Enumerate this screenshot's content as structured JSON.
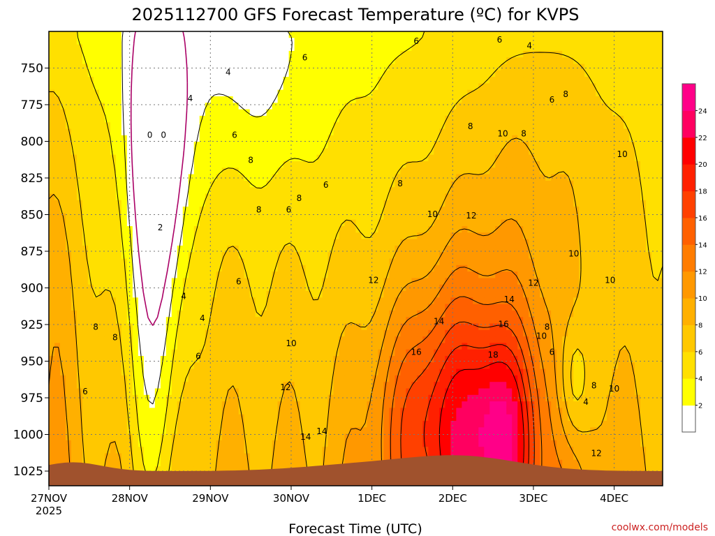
{
  "chart_data": {
    "type": "heatmap",
    "title": "2025112700 GFS Forecast Temperature (ºC) for KVPS",
    "xlabel": "Forecast Time (UTC)",
    "credit": "coolwx.com/models",
    "year_label": "2025",
    "x_ticks": [
      "27NOV",
      "28NOV",
      "29NOV",
      "30NOV",
      "1DEC",
      "2DEC",
      "3DEC",
      "4DEC"
    ],
    "y_ticks": [
      750,
      775,
      800,
      825,
      850,
      875,
      900,
      925,
      950,
      975,
      1000,
      1025
    ],
    "y_axis": "pressure (hPa), inverted",
    "ylim": [
      1035,
      725
    ],
    "colorbar": {
      "levels": [
        0,
        2,
        4,
        6,
        8,
        10,
        12,
        14,
        16,
        18,
        20,
        22,
        24,
        26
      ],
      "labels": [
        "2",
        "4",
        "6",
        "8",
        "10",
        "12",
        "14",
        "16",
        "18",
        "20",
        "22",
        "24"
      ],
      "colors": [
        "#ffffff",
        "#ffff00",
        "#ffe000",
        "#ffc800",
        "#ffb000",
        "#ff9800",
        "#ff7c00",
        "#ff6000",
        "#ff4000",
        "#ff2000",
        "#ff0000",
        "#ff0060",
        "#ff0088"
      ]
    },
    "ground_color": "#a0522d",
    "freezing_contour_color": "#aa0066",
    "contour_labels": [
      {
        "text": "0",
        "day": 1.25,
        "p": 796,
        "freezing": true
      },
      {
        "text": "0",
        "day": 1.42,
        "p": 796,
        "freezing": true
      },
      {
        "text": "2",
        "day": 1.38,
        "p": 859
      },
      {
        "text": "4",
        "day": 2.22,
        "p": 753
      },
      {
        "text": "4",
        "day": 1.75,
        "p": 771
      },
      {
        "text": "4",
        "day": 1.67,
        "p": 906
      },
      {
        "text": "4",
        "day": 1.9,
        "p": 921
      },
      {
        "text": "6",
        "day": 2.3,
        "p": 796
      },
      {
        "text": "6",
        "day": 2.35,
        "p": 896
      },
      {
        "text": "6",
        "day": 1.85,
        "p": 947
      },
      {
        "text": "6",
        "day": 0.45,
        "p": 971
      },
      {
        "text": "6",
        "day": 3.17,
        "p": 743
      },
      {
        "text": "6",
        "day": 4.55,
        "p": 732
      },
      {
        "text": "6",
        "day": 5.58,
        "p": 731
      },
      {
        "text": "6",
        "day": 2.97,
        "p": 847
      },
      {
        "text": "6",
        "day": 3.43,
        "p": 830
      },
      {
        "text": "6",
        "day": 6.23,
        "p": 772
      },
      {
        "text": "6",
        "day": 6.23,
        "p": 944
      },
      {
        "text": "4",
        "day": 5.95,
        "p": 735
      },
      {
        "text": "4",
        "day": 6.65,
        "p": 978
      },
      {
        "text": "8",
        "day": 0.58,
        "p": 927
      },
      {
        "text": "8",
        "day": 0.82,
        "p": 934
      },
      {
        "text": "8",
        "day": 2.5,
        "p": 813
      },
      {
        "text": "8",
        "day": 3.1,
        "p": 839
      },
      {
        "text": "8",
        "day": 2.6,
        "p": 847
      },
      {
        "text": "8",
        "day": 4.35,
        "p": 829
      },
      {
        "text": "8",
        "day": 5.22,
        "p": 790
      },
      {
        "text": "8",
        "day": 5.88,
        "p": 795
      },
      {
        "text": "8",
        "day": 6.4,
        "p": 768
      },
      {
        "text": "8",
        "day": 6.17,
        "p": 927
      },
      {
        "text": "8",
        "day": 6.75,
        "p": 967
      },
      {
        "text": "10",
        "day": 5.62,
        "p": 795
      },
      {
        "text": "10",
        "day": 4.75,
        "p": 850
      },
      {
        "text": "10",
        "day": 6.5,
        "p": 877
      },
      {
        "text": "10",
        "day": 7.1,
        "p": 809
      },
      {
        "text": "10",
        "day": 6.95,
        "p": 895
      },
      {
        "text": "10",
        "day": 3.0,
        "p": 938
      },
      {
        "text": "10",
        "day": 6.1,
        "p": 933
      },
      {
        "text": "10",
        "day": 7.0,
        "p": 969
      },
      {
        "text": "12",
        "day": 5.23,
        "p": 851
      },
      {
        "text": "12",
        "day": 4.02,
        "p": 895
      },
      {
        "text": "12",
        "day": 6.0,
        "p": 897
      },
      {
        "text": "12",
        "day": 2.93,
        "p": 968
      },
      {
        "text": "12",
        "day": 6.78,
        "p": 1013
      },
      {
        "text": "14",
        "day": 5.7,
        "p": 908
      },
      {
        "text": "14",
        "day": 4.83,
        "p": 923
      },
      {
        "text": "14",
        "day": 3.18,
        "p": 1002
      },
      {
        "text": "14",
        "day": 3.38,
        "p": 998
      },
      {
        "text": "16",
        "day": 5.63,
        "p": 925
      },
      {
        "text": "16",
        "day": 4.55,
        "p": 944
      },
      {
        "text": "18",
        "day": 5.5,
        "p": 946
      }
    ]
  }
}
